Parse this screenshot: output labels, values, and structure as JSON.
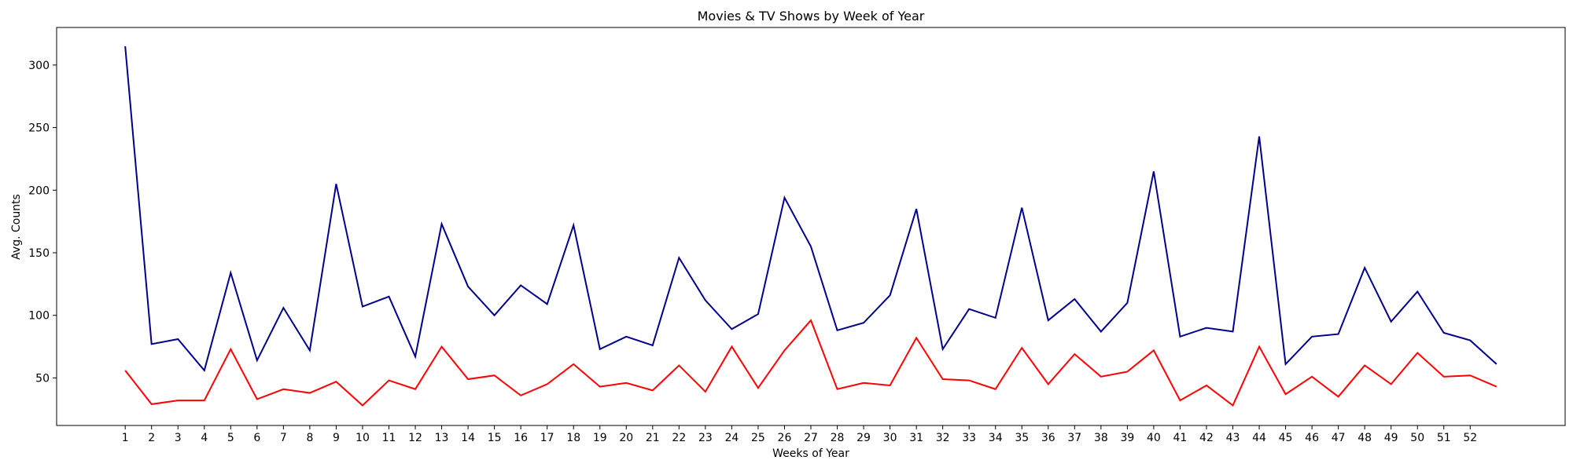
{
  "chart_data": {
    "type": "line",
    "title": "Movies & TV Shows by Week of Year",
    "xlabel": "Weeks of Year",
    "ylabel": "Avg. Counts",
    "x": [
      1,
      2,
      3,
      4,
      5,
      6,
      7,
      8,
      9,
      10,
      11,
      12,
      13,
      14,
      15,
      16,
      17,
      18,
      19,
      20,
      21,
      22,
      23,
      24,
      25,
      26,
      27,
      28,
      29,
      30,
      31,
      32,
      33,
      34,
      35,
      36,
      37,
      38,
      39,
      40,
      41,
      42,
      43,
      44,
      45,
      46,
      47,
      48,
      49,
      50,
      51,
      52,
      53
    ],
    "x_tick_labels": [
      "1",
      "2",
      "3",
      "4",
      "5",
      "6",
      "7",
      "8",
      "9",
      "10",
      "11",
      "12",
      "13",
      "14",
      "15",
      "16",
      "17",
      "18",
      "19",
      "20",
      "21",
      "22",
      "23",
      "24",
      "25",
      "26",
      "27",
      "28",
      "29",
      "30",
      "31",
      "32",
      "33",
      "34",
      "35",
      "36",
      "37",
      "38",
      "39",
      "40",
      "41",
      "42",
      "43",
      "44",
      "45",
      "46",
      "47",
      "48",
      "49",
      "50",
      "51",
      "52"
    ],
    "y_ticks": [
      50,
      100,
      150,
      200,
      250,
      300
    ],
    "xlim": [
      -1.6,
      55.6
    ],
    "ylim": [
      12,
      330
    ],
    "grid": false,
    "series": [
      {
        "color": "#00008b",
        "values": [
          315,
          77,
          81,
          56,
          134,
          64,
          106,
          72,
          205,
          107,
          115,
          67,
          173,
          123,
          100,
          124,
          109,
          172,
          73,
          83,
          76,
          146,
          112,
          89,
          101,
          194,
          155,
          88,
          94,
          116,
          185,
          73,
          105,
          98,
          186,
          96,
          113,
          87,
          110,
          215,
          83,
          90,
          87,
          243,
          61,
          83,
          85,
          138,
          95,
          119,
          86,
          80,
          61
        ]
      },
      {
        "color": "#ff0000",
        "values": [
          56,
          29,
          32,
          32,
          73,
          33,
          41,
          38,
          47,
          28,
          48,
          41,
          75,
          49,
          52,
          36,
          45,
          61,
          43,
          46,
          40,
          60,
          39,
          75,
          42,
          72,
          96,
          41,
          46,
          44,
          82,
          49,
          48,
          41,
          74,
          45,
          69,
          51,
          55,
          72,
          32,
          44,
          28,
          75,
          37,
          51,
          35,
          60,
          45,
          70,
          51,
          52,
          43
        ]
      }
    ]
  }
}
